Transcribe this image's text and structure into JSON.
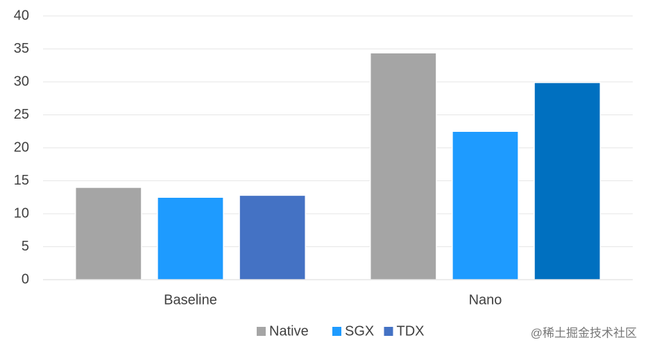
{
  "chart_data": {
    "type": "bar",
    "categories": [
      "Baseline",
      "Nano"
    ],
    "series": [
      {
        "name": "Native",
        "color": "#a5a5a5",
        "values": [
          14.0,
          34.4
        ]
      },
      {
        "name": "SGX",
        "color": "#1e9bff",
        "values": [
          12.5,
          22.5
        ]
      },
      {
        "name": "TDX",
        "color": "#4472c4",
        "colors": [
          "#4472c4",
          "#0070c0"
        ],
        "values": [
          12.8,
          29.9
        ]
      }
    ],
    "ylim": [
      0,
      40
    ],
    "yticks": [
      0,
      5,
      10,
      15,
      20,
      25,
      30,
      35,
      40
    ],
    "grid": true,
    "legend": "bottom",
    "watermark": "@稀土掘金技术社区"
  }
}
